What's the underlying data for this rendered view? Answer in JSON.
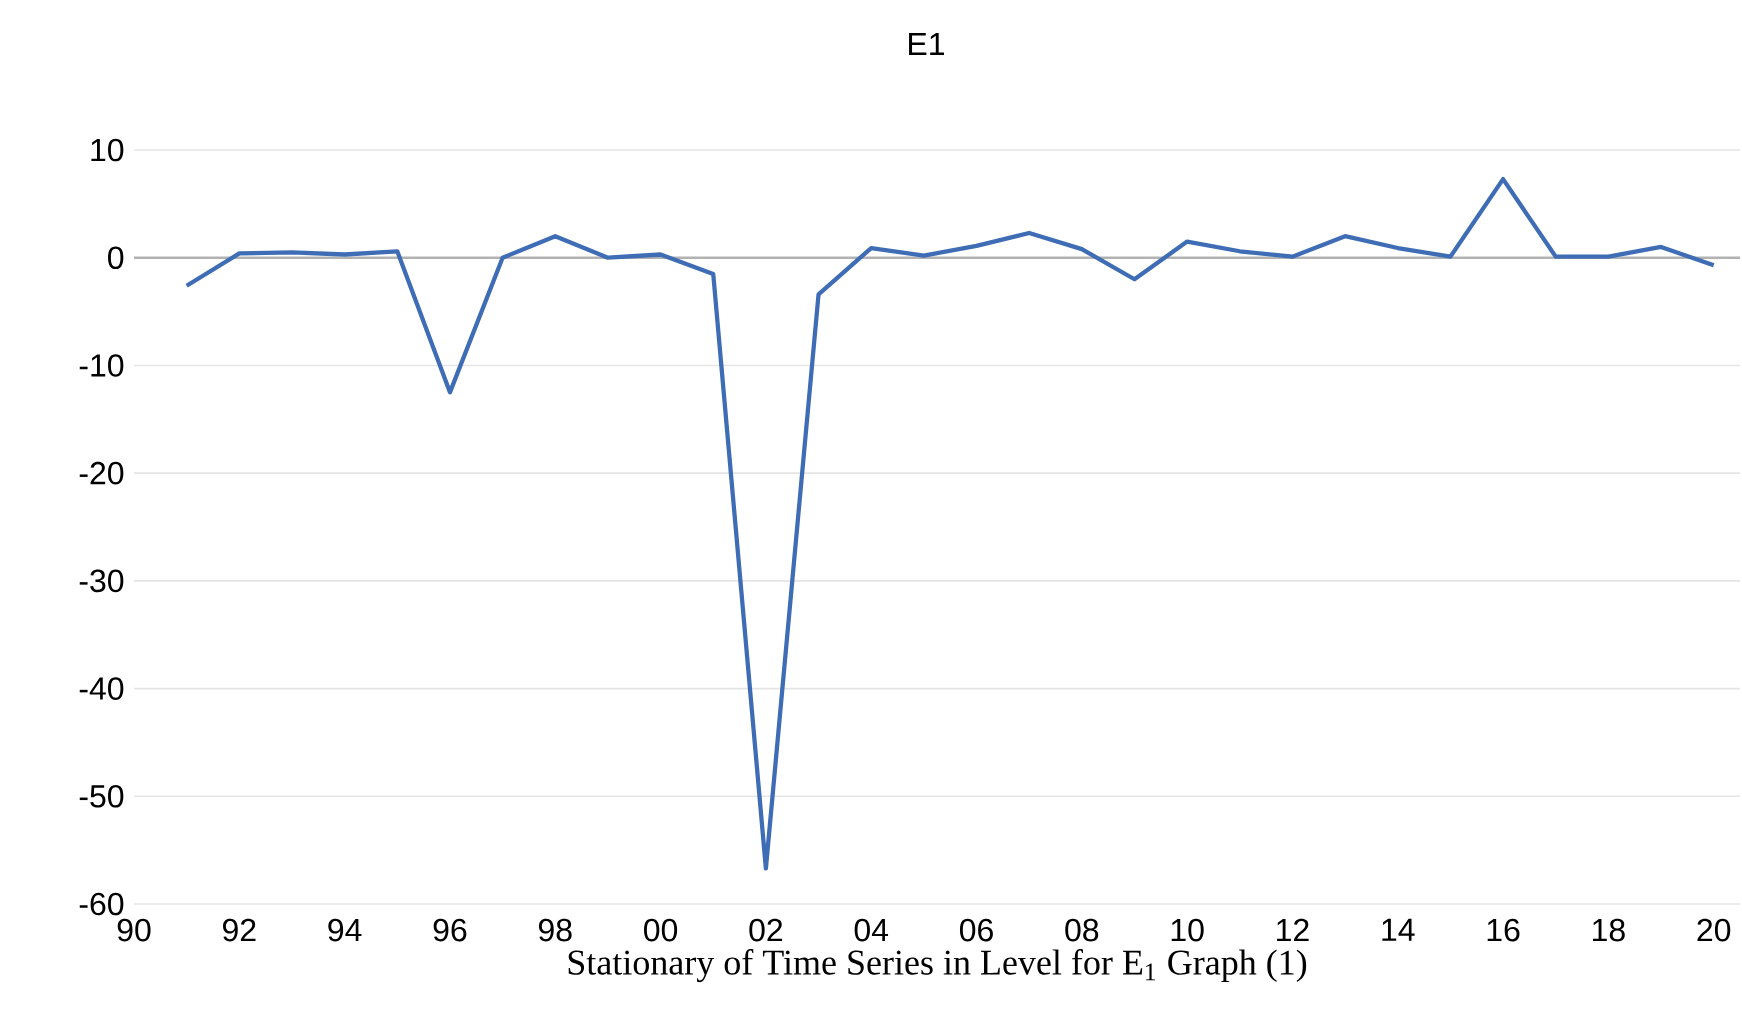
{
  "chart_data": {
    "type": "line",
    "title": "E1",
    "xlabel": "Stationary of Time Series in Level for E$_{1}$ Graph (1)",
    "x": [
      1991,
      1992,
      1993,
      1994,
      1995,
      1996,
      1997,
      1998,
      1999,
      2000,
      2001,
      2002,
      2003,
      2004,
      2005,
      2006,
      2007,
      2008,
      2009,
      2010,
      2011,
      2012,
      2013,
      2014,
      2015,
      2016,
      2017,
      2018,
      2019,
      2020
    ],
    "series": [
      {
        "color": "#3e6db5",
        "values": [
          -2.6,
          0.4,
          0.5,
          0.3,
          0.6,
          -12.5,
          0,
          2.0,
          0,
          0.3,
          -1.5,
          -56.7,
          -3.4,
          0.9,
          0.2,
          1.1,
          2.3,
          0.8,
          -2.0,
          1.5,
          0.6,
          0.1,
          2.0,
          0.9,
          0.1,
          7.3,
          0.1,
          0.1,
          1.0,
          -0.7
        ]
      }
    ],
    "xlim": [
      1990,
      2020.5
    ],
    "xticks": [
      {
        "value": 1990,
        "label": "90"
      },
      {
        "value": 1992,
        "label": "92"
      },
      {
        "value": 1994,
        "label": "94"
      },
      {
        "value": 1996,
        "label": "96"
      },
      {
        "value": 1998,
        "label": "98"
      },
      {
        "value": 2000,
        "label": "00"
      },
      {
        "value": 2002,
        "label": "02"
      },
      {
        "value": 2004,
        "label": "04"
      },
      {
        "value": 2006,
        "label": "06"
      },
      {
        "value": 2008,
        "label": "08"
      },
      {
        "value": 2010,
        "label": "10"
      },
      {
        "value": 2012,
        "label": "12"
      },
      {
        "value": 2014,
        "label": "14"
      },
      {
        "value": 2016,
        "label": "16"
      },
      {
        "value": 2018,
        "label": "18"
      },
      {
        "value": 2020,
        "label": "20"
      }
    ],
    "ylim": [
      -60,
      10
    ],
    "yticks": [
      -60,
      -50,
      -40,
      -30,
      -20,
      -10,
      0,
      10
    ],
    "grid": "y",
    "marker": "none",
    "line_style": "solid"
  }
}
